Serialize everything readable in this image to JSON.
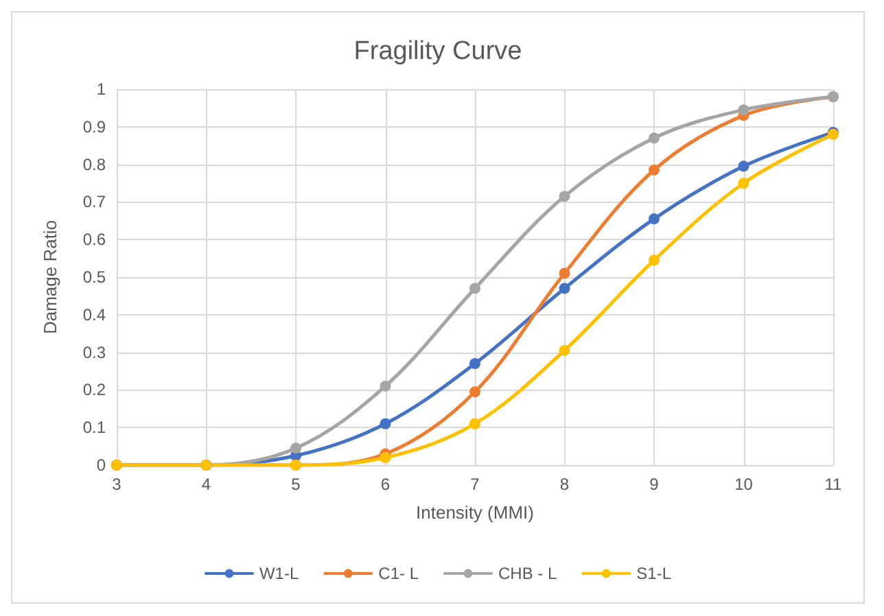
{
  "chart_data": {
    "type": "line",
    "title": "Fragility Curve",
    "xlabel": "Intensity (MMI)",
    "ylabel": "Damage Ratio",
    "x": [
      3,
      4,
      5,
      6,
      7,
      8,
      9,
      10,
      11
    ],
    "series": [
      {
        "name": "W1-L",
        "color": "#4472c4",
        "values": [
          0,
          0,
          0.025,
          0.11,
          0.27,
          0.47,
          0.655,
          0.795,
          0.885
        ]
      },
      {
        "name": "C1- L",
        "color": "#ed7d31",
        "values": [
          0,
          0,
          0,
          0.03,
          0.195,
          0.51,
          0.785,
          0.93,
          0.98
        ]
      },
      {
        "name": "CHB - L",
        "color": "#a5a5a5",
        "values": [
          0,
          0,
          0.045,
          0.21,
          0.47,
          0.715,
          0.87,
          0.945,
          0.98
        ]
      },
      {
        "name": "S1-L",
        "color": "#ffc000",
        "values": [
          0,
          0,
          0,
          0.02,
          0.11,
          0.305,
          0.545,
          0.75,
          0.88
        ]
      }
    ],
    "xlim": [
      3,
      11
    ],
    "xticks": [
      3,
      4,
      5,
      6,
      7,
      8,
      9,
      10,
      11
    ],
    "ylim": [
      0,
      1
    ],
    "yticks": [
      0,
      0.1,
      0.2,
      0.3,
      0.4,
      0.5,
      0.6,
      0.7,
      0.8,
      0.9,
      1
    ],
    "grid": true,
    "legend": "bottom",
    "marker": "circle",
    "line_style": "solid"
  }
}
